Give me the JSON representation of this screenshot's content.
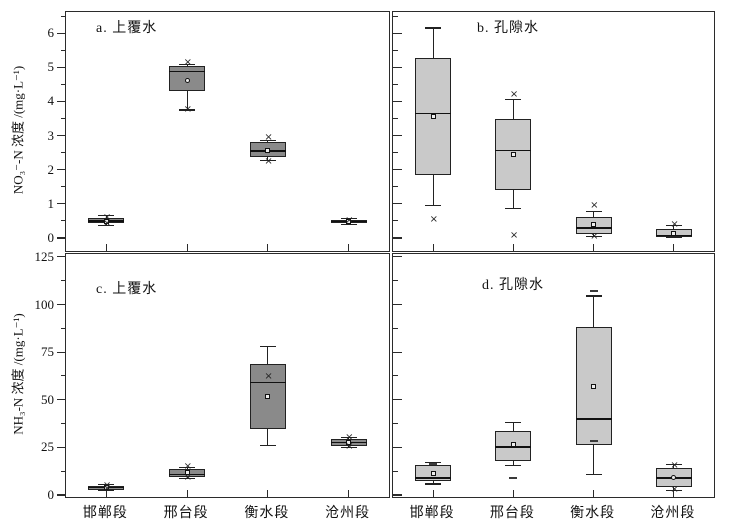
{
  "figure": {
    "background": "#ffffff",
    "frame_color": "#2b2b2b",
    "dark_box_fill": "#8a8a8a",
    "light_box_fill": "#c9c9c9",
    "categories": [
      "邯郸段",
      "邢台段",
      "衡水段",
      "沧州段"
    ]
  },
  "chart_data": [
    {
      "type": "box",
      "panel": "a",
      "title": "a. 上覆水",
      "ylabel": "NO₃⁻-N 浓度 /(mg·L⁻¹)",
      "ylim": [
        0,
        6
      ],
      "yticks": [
        0,
        1,
        2,
        3,
        4,
        5,
        6
      ],
      "minor_tick_step": 0.5,
      "box_fill": "dark",
      "categories": [
        "邯郸段",
        "邢台段",
        "衡水段",
        "沧州段"
      ],
      "boxes": [
        {
          "category": "邯郸段",
          "whisker_low": 0.36,
          "q1": 0.44,
          "median": 0.5,
          "q3": 0.58,
          "whisker_high": 0.66,
          "mean": 0.49,
          "mean_symbol": "square",
          "extremes": [
            {
              "value": 0.6,
              "symbol": "x"
            },
            {
              "value": 0.4,
              "symbol": "x"
            }
          ]
        },
        {
          "category": "邢台段",
          "whisker_low": 3.75,
          "q1": 4.3,
          "median": 4.88,
          "q3": 5.05,
          "whisker_high": 5.08,
          "mean": 4.62,
          "mean_symbol": "circle",
          "extremes": [
            {
              "value": 5.12,
              "symbol": "x"
            },
            {
              "value": 3.74,
              "symbol": "x"
            }
          ]
        },
        {
          "category": "衡水段",
          "whisker_low": 2.28,
          "q1": 2.36,
          "median": 2.55,
          "q3": 2.8,
          "whisker_high": 2.86,
          "mean": 2.57,
          "mean_symbol": "square",
          "extremes": [
            {
              "value": 2.93,
              "symbol": "x"
            },
            {
              "value": 2.24,
              "symbol": "x"
            }
          ]
        },
        {
          "category": "沧州段",
          "whisker_low": 0.4,
          "q1": 0.44,
          "median": 0.48,
          "q3": 0.54,
          "whisker_high": 0.57,
          "mean": 0.48,
          "mean_symbol": "square",
          "extremes": [
            {
              "value": 0.5,
              "symbol": "x"
            }
          ]
        }
      ]
    },
    {
      "type": "box",
      "panel": "b",
      "title": "b. 孔隙水",
      "ylabel": "NO₃⁻-N 浓度 /(mg·L⁻¹)",
      "ylim": [
        0,
        6
      ],
      "yticks": [
        0,
        1,
        2,
        3,
        4,
        5,
        6
      ],
      "minor_tick_step": 0.5,
      "box_fill": "light",
      "categories": [
        "邯郸段",
        "邢台段",
        "衡水段",
        "沧州段"
      ],
      "boxes": [
        {
          "category": "邯郸段",
          "whisker_low": 0.95,
          "q1": 1.85,
          "median": 3.65,
          "q3": 5.28,
          "whisker_high": 6.15,
          "mean": 3.55,
          "mean_symbol": "square",
          "extremes": [
            {
              "value": 0.52,
              "symbol": "x"
            }
          ]
        },
        {
          "category": "邢台段",
          "whisker_low": 0.86,
          "q1": 1.4,
          "median": 2.56,
          "q3": 3.5,
          "whisker_high": 4.05,
          "mean": 2.46,
          "mean_symbol": "square",
          "extremes": [
            {
              "value": 4.2,
              "symbol": "x"
            },
            {
              "value": 0.06,
              "symbol": "x"
            }
          ]
        },
        {
          "category": "衡水段",
          "whisker_low": 0.04,
          "q1": 0.13,
          "median": 0.29,
          "q3": 0.62,
          "whisker_high": 0.78,
          "mean": 0.39,
          "mean_symbol": "square",
          "extremes": [
            {
              "value": 0.95,
              "symbol": "x"
            },
            {
              "value": 0.04,
              "symbol": "x"
            }
          ]
        },
        {
          "category": "沧州段",
          "whisker_low": 0.01,
          "q1": 0.03,
          "median": 0.07,
          "q3": 0.27,
          "whisker_high": 0.36,
          "mean": 0.13,
          "mean_symbol": "square",
          "extremes": [
            {
              "value": 0.38,
              "symbol": "x"
            }
          ]
        }
      ]
    },
    {
      "type": "box",
      "panel": "c",
      "title": "c. 上覆水",
      "ylabel": "NH₃-N 浓度 /(mg·L⁻¹)",
      "ylim": [
        0,
        125
      ],
      "yticks": [
        0,
        25,
        50,
        75,
        100,
        125
      ],
      "minor_tick_step": 12.5,
      "box_fill": "dark",
      "categories": [
        "邯郸段",
        "邢台段",
        "衡水段",
        "沧州段"
      ],
      "boxes": [
        {
          "category": "邯郸段",
          "whisker_low": 2.2,
          "q1": 2.9,
          "median": 3.9,
          "q3": 5.0,
          "whisker_high": 5.6,
          "mean": 4.0,
          "mean_symbol": "square",
          "extremes": [
            {
              "value": 4.7,
              "symbol": "x"
            },
            {
              "value": 3.2,
              "symbol": "x"
            }
          ]
        },
        {
          "category": "邢台段",
          "whisker_low": 8.6,
          "q1": 9.4,
          "median": 10.8,
          "q3": 13.8,
          "whisker_high": 14.3,
          "mean": 11.9,
          "mean_symbol": "square",
          "extremes": [
            {
              "value": 14.7,
              "symbol": "x"
            },
            {
              "value": 8.9,
              "symbol": "x"
            }
          ]
        },
        {
          "category": "衡水段",
          "whisker_low": 26.0,
          "q1": 34.5,
          "median": 59.0,
          "q3": 69.0,
          "whisker_high": 78.0,
          "mean": 51.5,
          "mean_symbol": "square",
          "extremes": [
            {
              "value": 62.0,
              "symbol": "x"
            }
          ]
        },
        {
          "category": "沧州段",
          "whisker_low": 24.8,
          "q1": 26.0,
          "median": 27.5,
          "q3": 29.3,
          "whisker_high": 30.2,
          "mean": 27.6,
          "mean_symbol": "square",
          "extremes": [
            {
              "value": 29.8,
              "symbol": "x"
            },
            {
              "value": 25.4,
              "symbol": "x"
            }
          ]
        }
      ]
    },
    {
      "type": "box",
      "panel": "d",
      "title": "d. 孔隙水",
      "ylabel": "NH₃-N 浓度 /(mg·L⁻¹)",
      "ylim": [
        0,
        125
      ],
      "yticks": [
        0,
        25,
        50,
        75,
        100,
        125
      ],
      "minor_tick_step": 12.5,
      "box_fill": "light",
      "categories": [
        "邯郸段",
        "邢台段",
        "衡水段",
        "沧州段"
      ],
      "boxes": [
        {
          "category": "邯郸段",
          "whisker_low": 5.8,
          "q1": 7.6,
          "median": 9.0,
          "q3": 15.8,
          "whisker_high": 17.0,
          "mean": 11.5,
          "mean_symbol": "square",
          "extremes": [
            {
              "value": 16.3,
              "symbol": "dash"
            }
          ]
        },
        {
          "category": "邢台段",
          "whisker_low": 15.4,
          "q1": 18.0,
          "median": 25.3,
          "q3": 33.6,
          "whisker_high": 38.0,
          "mean": 26.6,
          "mean_symbol": "square",
          "extremes": [
            {
              "value": 8.9,
              "symbol": "dash"
            }
          ]
        },
        {
          "category": "衡水段",
          "whisker_low": 10.8,
          "q1": 26.5,
          "median": 40.0,
          "q3": 88.0,
          "whisker_high": 104.5,
          "mean": 57.0,
          "mean_symbol": "square",
          "extremes": [
            {
              "value": 107.2,
              "symbol": "dash"
            },
            {
              "value": 28.5,
              "symbol": "dash"
            }
          ]
        },
        {
          "category": "沧州段",
          "whisker_low": 2.3,
          "q1": 4.5,
          "median": 8.9,
          "q3": 14.2,
          "whisker_high": 15.9,
          "mean": 9.2,
          "mean_symbol": "circle",
          "extremes": [
            {
              "value": 15.3,
              "symbol": "x"
            },
            {
              "value": 2.6,
              "symbol": "x"
            }
          ]
        }
      ]
    }
  ]
}
